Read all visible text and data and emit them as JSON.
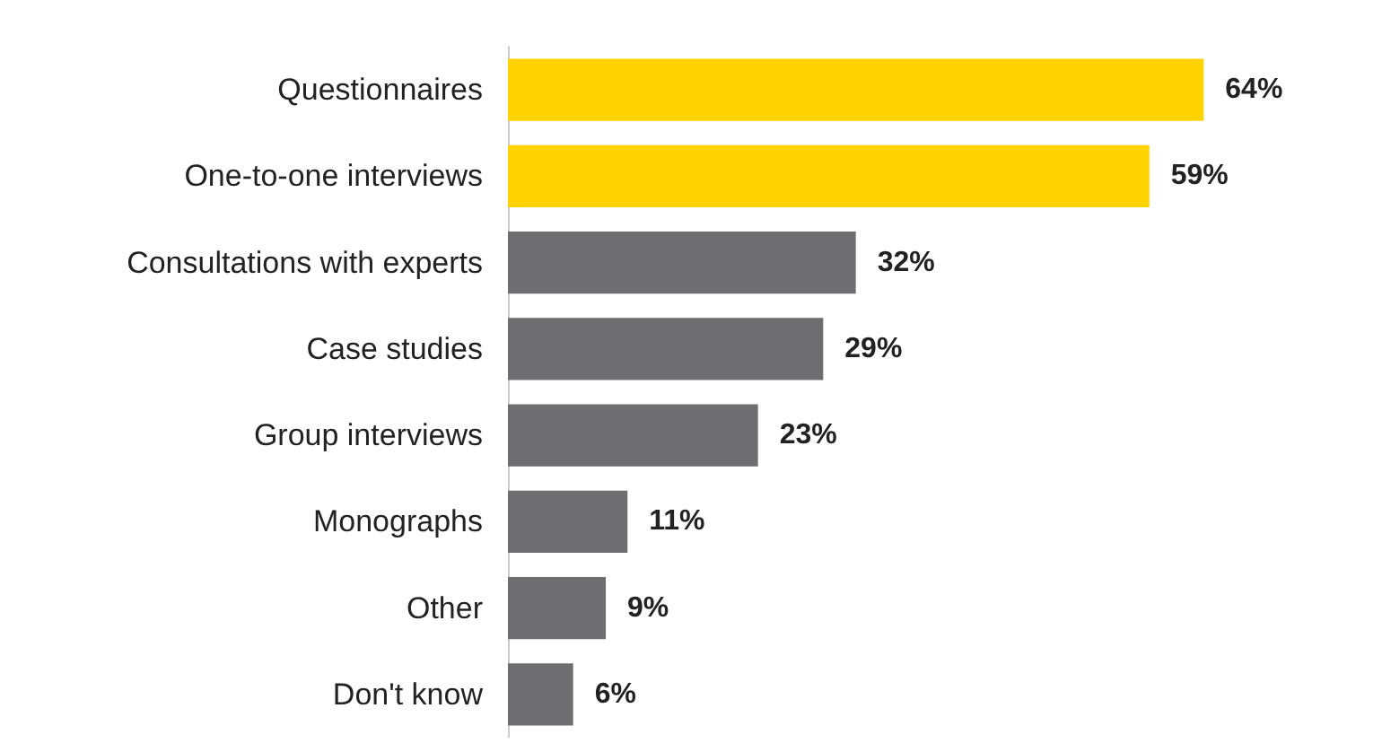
{
  "chart_data": {
    "type": "bar",
    "orientation": "horizontal",
    "categories": [
      "Questionnaires",
      "One-to-one interviews",
      "Consultations with experts",
      "Case studies",
      "Group interviews",
      "Monographs",
      "Other",
      "Don't know"
    ],
    "values": [
      64,
      59,
      32,
      29,
      23,
      11,
      9,
      6
    ],
    "colors": [
      "#ffd200",
      "#ffd200",
      "#6d6e71",
      "#6d6e71",
      "#6d6e71",
      "#6d6e71",
      "#6d6e71",
      "#6d6e71"
    ],
    "value_labels": [
      "64%",
      "59%",
      "32%",
      "29%",
      "23%",
      "11%",
      "9%",
      "6%"
    ]
  }
}
